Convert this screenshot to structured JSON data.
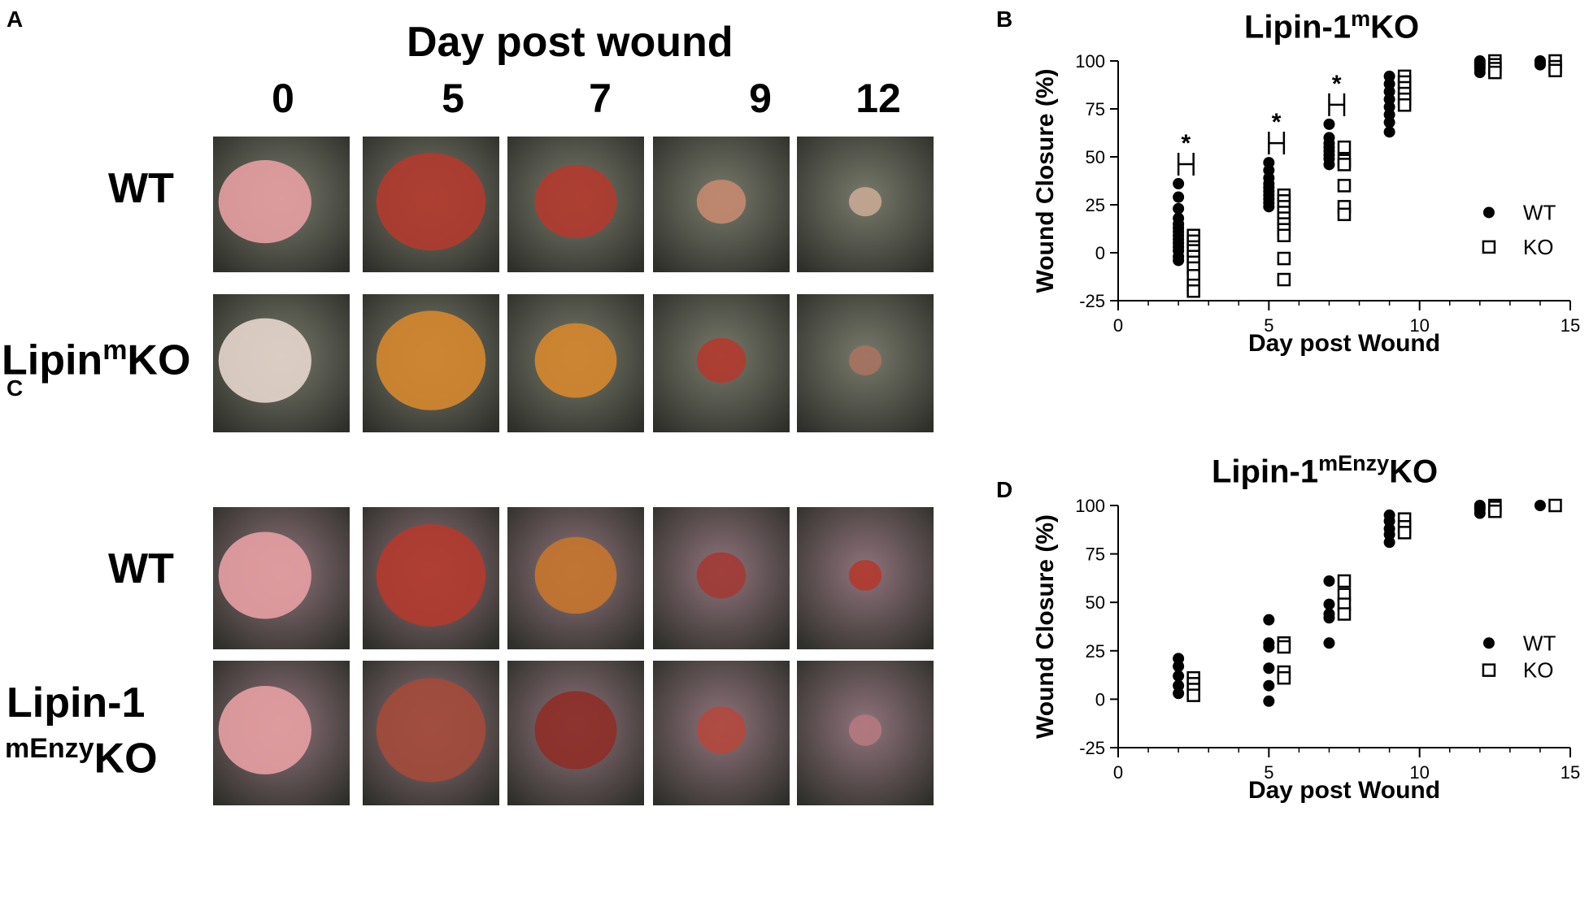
{
  "panels": {
    "a": "A",
    "b": "B",
    "c": "C",
    "d": "D"
  },
  "photos": {
    "header": "Day post wound",
    "days": [
      "0",
      "5",
      "7",
      "9",
      "12"
    ],
    "rows_a": [
      {
        "text": "WT",
        "sup": "",
        "text2": "",
        "line2": "",
        "line2_sup": "",
        "line2_text": ""
      },
      {
        "text": "Lipin",
        "sup": "m",
        "text2": "KO",
        "line2": "",
        "line2_sup": "",
        "line2_text": ""
      }
    ],
    "rows_c": [
      {
        "text": "WT",
        "sup": "",
        "text2": "",
        "line2": "",
        "line2_sup": "",
        "line2_text": ""
      },
      {
        "text": "Lipin-1",
        "sup": "",
        "text2": "",
        "line2": "",
        "line2_sup": "mEnzy",
        "line2_text": "KO"
      }
    ]
  },
  "colors": {
    "skin_a": "#5f6150",
    "skin_c": "#7a5a63",
    "wound_red": "#b23a2e",
    "wound_orange": "#d6872e",
    "wound_pink": "#e7a0a3"
  },
  "chart_data": [
    {
      "type": "scatter",
      "title": "Lipin-1",
      "title_sup": "m",
      "title_suffix": "KO",
      "xlabel": "Day post Wound",
      "ylabel": "Wound Closure  (%)",
      "xlim": [
        0,
        15
      ],
      "ylim": [
        -25,
        100
      ],
      "xticks": [
        "0",
        "5",
        "10",
        "15"
      ],
      "yticks": [
        "-25",
        "0",
        "25",
        "50",
        "75",
        "100"
      ],
      "legend_position": "right",
      "significance": [
        2,
        5,
        7
      ],
      "significance_label": "*",
      "series": [
        {
          "name": "WT",
          "marker": "filled-circle",
          "points": [
            [
              2,
              36
            ],
            [
              2,
              29
            ],
            [
              2,
              23
            ],
            [
              2,
              18
            ],
            [
              2,
              15
            ],
            [
              2,
              13
            ],
            [
              2,
              11
            ],
            [
              2,
              9
            ],
            [
              2,
              7
            ],
            [
              2,
              5
            ],
            [
              2,
              3
            ],
            [
              2,
              1
            ],
            [
              2,
              -2
            ],
            [
              2,
              -4
            ],
            [
              5,
              47
            ],
            [
              5,
              43
            ],
            [
              5,
              39
            ],
            [
              5,
              36
            ],
            [
              5,
              34
            ],
            [
              5,
              32
            ],
            [
              5,
              30
            ],
            [
              5,
              28
            ],
            [
              5,
              26
            ],
            [
              5,
              24
            ],
            [
              7,
              67
            ],
            [
              7,
              60
            ],
            [
              7,
              57
            ],
            [
              7,
              55
            ],
            [
              7,
              53
            ],
            [
              7,
              51
            ],
            [
              7,
              49
            ],
            [
              7,
              46
            ],
            [
              9,
              92
            ],
            [
              9,
              88
            ],
            [
              9,
              84
            ],
            [
              9,
              80
            ],
            [
              9,
              76
            ],
            [
              9,
              72
            ],
            [
              9,
              68
            ],
            [
              9,
              63
            ],
            [
              12,
              100
            ],
            [
              12,
              99
            ],
            [
              12,
              98
            ],
            [
              12,
              97
            ],
            [
              12,
              96
            ],
            [
              12,
              94
            ],
            [
              14,
              100
            ],
            [
              14,
              99
            ],
            [
              14,
              98
            ]
          ]
        },
        {
          "name": "KO",
          "marker": "open-square",
          "points": [
            [
              2.5,
              9
            ],
            [
              2.5,
              6
            ],
            [
              2.5,
              3
            ],
            [
              2.5,
              1
            ],
            [
              2.5,
              -2
            ],
            [
              2.5,
              -5
            ],
            [
              2.5,
              -8
            ],
            [
              2.5,
              -12
            ],
            [
              2.5,
              -17
            ],
            [
              2.5,
              -20
            ],
            [
              5.5,
              30
            ],
            [
              5.5,
              27
            ],
            [
              5.5,
              24
            ],
            [
              5.5,
              21
            ],
            [
              5.5,
              18
            ],
            [
              5.5,
              15
            ],
            [
              5.5,
              12
            ],
            [
              5.5,
              9
            ],
            [
              5.5,
              -3
            ],
            [
              5.5,
              -14
            ],
            [
              7.5,
              55
            ],
            [
              7.5,
              48
            ],
            [
              7.5,
              46
            ],
            [
              7.5,
              35
            ],
            [
              7.5,
              24
            ],
            [
              7.5,
              20
            ],
            [
              9.5,
              92
            ],
            [
              9.5,
              89
            ],
            [
              9.5,
              86
            ],
            [
              9.5,
              83
            ],
            [
              9.5,
              80
            ],
            [
              9.5,
              77
            ],
            [
              12.5,
              100
            ],
            [
              12.5,
              98
            ],
            [
              12.5,
              96
            ],
            [
              12.5,
              94
            ],
            [
              14.5,
              100
            ],
            [
              14.5,
              97
            ],
            [
              14.5,
              95
            ]
          ]
        }
      ]
    },
    {
      "type": "scatter",
      "title": "Lipin-1",
      "title_sup": "mEnzy",
      "title_suffix": "KO",
      "xlabel": "Day post Wound",
      "ylabel": "Wound Closure  (%)",
      "xlim": [
        0,
        15
      ],
      "ylim": [
        -25,
        100
      ],
      "xticks": [
        "0",
        "5",
        "10",
        "15"
      ],
      "yticks": [
        "-25",
        "0",
        "25",
        "50",
        "75",
        "100"
      ],
      "legend_position": "right",
      "significance": [],
      "significance_label": "",
      "series": [
        {
          "name": "WT",
          "marker": "filled-circle",
          "points": [
            [
              2,
              21
            ],
            [
              2,
              17
            ],
            [
              2,
              12
            ],
            [
              2,
              7
            ],
            [
              2,
              3
            ],
            [
              5,
              41
            ],
            [
              5,
              29
            ],
            [
              5,
              27
            ],
            [
              5,
              16
            ],
            [
              5,
              7
            ],
            [
              5,
              -1
            ],
            [
              7,
              61
            ],
            [
              7,
              49
            ],
            [
              7,
              44
            ],
            [
              7,
              42
            ],
            [
              7,
              29
            ],
            [
              9,
              95
            ],
            [
              9,
              92
            ],
            [
              9,
              88
            ],
            [
              9,
              85
            ],
            [
              9,
              81
            ],
            [
              12,
              100
            ],
            [
              12,
              99
            ],
            [
              12,
              98
            ],
            [
              12,
              96
            ],
            [
              14,
              100
            ]
          ]
        },
        {
          "name": "KO",
          "marker": "open-square",
          "points": [
            [
              2.5,
              11
            ],
            [
              2.5,
              8
            ],
            [
              2.5,
              5
            ],
            [
              2.5,
              2
            ],
            [
              5.5,
              29
            ],
            [
              5.5,
              27
            ],
            [
              5.5,
              14
            ],
            [
              5.5,
              11
            ],
            [
              7.5,
              61
            ],
            [
              7.5,
              54
            ],
            [
              7.5,
              49
            ],
            [
              7.5,
              44
            ],
            [
              9.5,
              93
            ],
            [
              9.5,
              89
            ],
            [
              9.5,
              86
            ],
            [
              12.5,
              100
            ],
            [
              12.5,
              99
            ],
            [
              12.5,
              97
            ],
            [
              14.5,
              100
            ]
          ]
        }
      ]
    }
  ]
}
